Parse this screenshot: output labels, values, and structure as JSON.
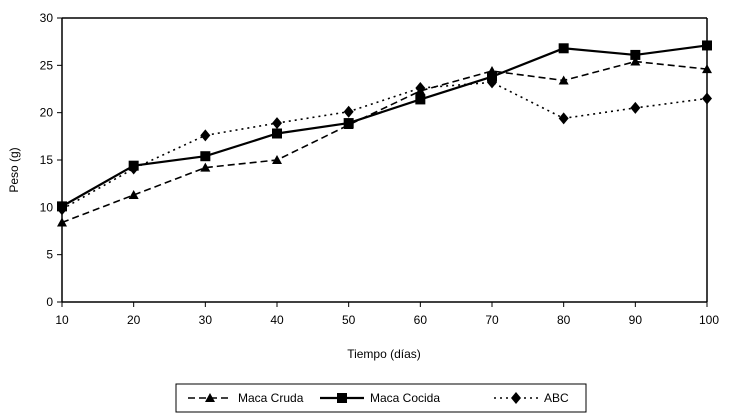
{
  "chart_data": {
    "type": "line",
    "title": "",
    "xlabel": "Tiempo (días)",
    "ylabel": "Peso (g)",
    "xlim": [
      10,
      100
    ],
    "ylim": [
      0,
      30
    ],
    "x_ticks": [
      10,
      20,
      30,
      40,
      50,
      60,
      70,
      80,
      90,
      100
    ],
    "y_ticks": [
      0,
      5,
      10,
      15,
      20,
      25,
      30
    ],
    "x_tick_labels": [
      "10",
      "20",
      "30",
      "40",
      "50",
      "60",
      "70",
      "80",
      "90",
      "100"
    ],
    "y_tick_labels": [
      "0",
      "5",
      "10",
      "15",
      "20",
      "25",
      "30"
    ],
    "x": [
      10,
      20,
      30,
      40,
      50,
      60,
      70,
      80,
      90,
      100
    ],
    "grid": false,
    "legend_position": "bottom",
    "series": [
      {
        "name": "Maca Cruda",
        "values": [
          8.4,
          11.3,
          14.2,
          15.0,
          18.7,
          22.3,
          24.4,
          23.4,
          25.4,
          24.6
        ],
        "marker": "triangle",
        "line_style": "dashed",
        "color": "#000000"
      },
      {
        "name": "Maca Cocida",
        "values": [
          10.1,
          14.4,
          15.4,
          17.8,
          18.9,
          21.4,
          23.8,
          26.8,
          26.1,
          27.1
        ],
        "marker": "square",
        "line_style": "solid",
        "color": "#000000"
      },
      {
        "name": "ABC",
        "values": [
          9.8,
          14.1,
          17.6,
          18.9,
          20.1,
          22.6,
          23.2,
          19.4,
          20.5,
          21.5
        ],
        "marker": "diamond",
        "line_style": "dotted",
        "color": "#000000"
      }
    ]
  }
}
